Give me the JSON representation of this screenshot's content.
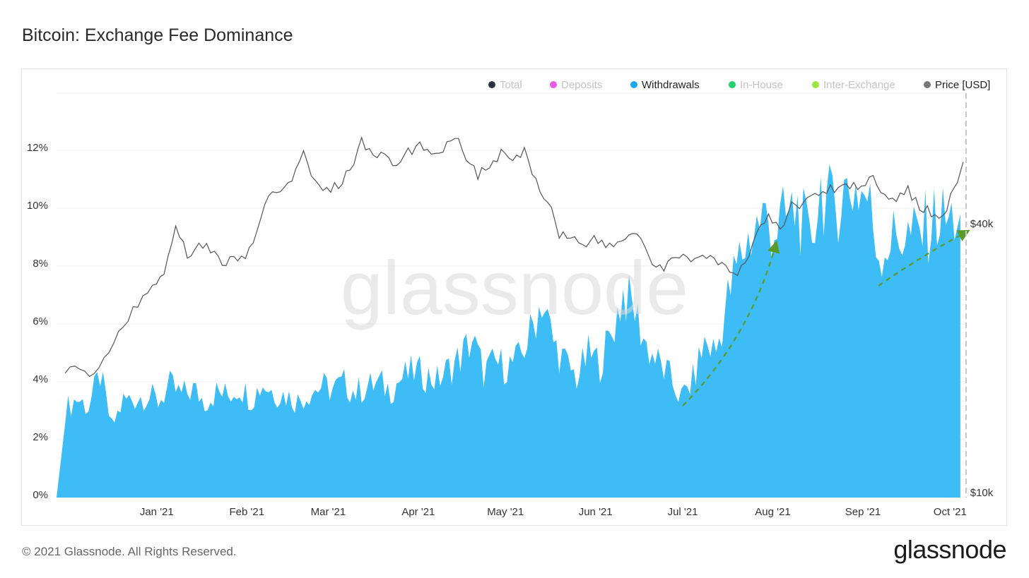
{
  "title": "Bitcoin: Exchange Fee Dominance",
  "footer": "© 2021 Glassnode. All Rights Reserved.",
  "logo": "glassnode",
  "watermark": "glassnode",
  "legend": [
    {
      "label": "Total",
      "color": "#2c3340",
      "active": false
    },
    {
      "label": "Deposits",
      "color": "#e85ae8",
      "active": false
    },
    {
      "label": "Withdrawals",
      "color": "#1aa7f7",
      "active": true
    },
    {
      "label": "In-House",
      "color": "#22d36b",
      "active": false
    },
    {
      "label": "Inter-Exchange",
      "color": "#9ae83a",
      "active": false
    },
    {
      "label": "Price [USD]",
      "color": "#777777",
      "active": true
    }
  ],
  "colors": {
    "area": "#3dbcf6",
    "price_line": "#555555",
    "annotation": "#5a9a2a"
  },
  "chart_data": {
    "type": "area",
    "x_ticks": [
      "Jan '21",
      "Feb '21",
      "Mar '21",
      "Apr '21",
      "May '21",
      "Jun '21",
      "Jul '21",
      "Aug '21",
      "Sep '21",
      "Oct '21"
    ],
    "y_left_ticks": [
      "0%",
      "2%",
      "4%",
      "6%",
      "8%",
      "10%",
      "12%"
    ],
    "y_left_range": [
      0,
      14
    ],
    "y_right_ticks": [
      "$10k",
      "$40k"
    ],
    "y_right_scale": "log",
    "grid": true,
    "legend_position": "top-right",
    "series": [
      {
        "name": "Withdrawals",
        "unit": "%",
        "points": [
          [
            "2020-12-01",
            3.0
          ],
          [
            "2020-12-05",
            3.4
          ],
          [
            "2020-12-09",
            3.1
          ],
          [
            "2020-12-13",
            4.2
          ],
          [
            "2020-12-17",
            2.4
          ],
          [
            "2020-12-21",
            3.3
          ],
          [
            "2020-12-25",
            3.4
          ],
          [
            "2020-12-29",
            3.5
          ],
          [
            "2021-01-02",
            3.3
          ],
          [
            "2021-01-06",
            3.8
          ],
          [
            "2021-01-10",
            3.5
          ],
          [
            "2021-01-14",
            3.7
          ],
          [
            "2021-01-18",
            3.3
          ],
          [
            "2021-01-22",
            3.6
          ],
          [
            "2021-01-26",
            3.5
          ],
          [
            "2021-01-30",
            3.8
          ],
          [
            "2021-02-03",
            3.4
          ],
          [
            "2021-02-07",
            3.9
          ],
          [
            "2021-02-11",
            3.6
          ],
          [
            "2021-02-15",
            3.5
          ],
          [
            "2021-02-19",
            3.3
          ],
          [
            "2021-02-23",
            3.6
          ],
          [
            "2021-02-27",
            3.8
          ],
          [
            "2021-03-03",
            3.7
          ],
          [
            "2021-03-07",
            3.9
          ],
          [
            "2021-03-11",
            3.6
          ],
          [
            "2021-03-15",
            3.8
          ],
          [
            "2021-03-19",
            3.9
          ],
          [
            "2021-03-23",
            3.7
          ],
          [
            "2021-03-27",
            4.1
          ],
          [
            "2021-03-31",
            4.3
          ],
          [
            "2021-04-04",
            4.2
          ],
          [
            "2021-04-08",
            4.0
          ],
          [
            "2021-04-12",
            4.4
          ],
          [
            "2021-04-16",
            4.8
          ],
          [
            "2021-04-20",
            5.4
          ],
          [
            "2021-04-24",
            4.3
          ],
          [
            "2021-04-28",
            4.6
          ],
          [
            "2021-05-02",
            4.5
          ],
          [
            "2021-05-06",
            4.7
          ],
          [
            "2021-05-10",
            5.6
          ],
          [
            "2021-05-14",
            6.8
          ],
          [
            "2021-05-18",
            5.3
          ],
          [
            "2021-05-22",
            4.6
          ],
          [
            "2021-05-26",
            4.1
          ],
          [
            "2021-05-30",
            4.9
          ],
          [
            "2021-06-03",
            4.6
          ],
          [
            "2021-06-07",
            5.6
          ],
          [
            "2021-06-11",
            7.0
          ],
          [
            "2021-06-15",
            6.4
          ],
          [
            "2021-06-19",
            5.2
          ],
          [
            "2021-06-23",
            4.6
          ],
          [
            "2021-06-27",
            4.1
          ],
          [
            "2021-07-01",
            3.4
          ],
          [
            "2021-07-05",
            4.0
          ],
          [
            "2021-07-09",
            5.3
          ],
          [
            "2021-07-13",
            5.0
          ],
          [
            "2021-07-17",
            6.8
          ],
          [
            "2021-07-21",
            8.2
          ],
          [
            "2021-07-25",
            9.0
          ],
          [
            "2021-07-29",
            9.6
          ],
          [
            "2021-08-02",
            9.2
          ],
          [
            "2021-08-06",
            9.5
          ],
          [
            "2021-08-10",
            9.9
          ],
          [
            "2021-08-14",
            8.6
          ],
          [
            "2021-08-18",
            10.6
          ],
          [
            "2021-08-22",
            9.8
          ],
          [
            "2021-08-26",
            10.5
          ],
          [
            "2021-08-30",
            10.6
          ],
          [
            "2021-09-03",
            10.3
          ],
          [
            "2021-09-07",
            8.4
          ],
          [
            "2021-09-11",
            8.8
          ],
          [
            "2021-09-15",
            9.0
          ],
          [
            "2021-09-19",
            8.9
          ],
          [
            "2021-09-23",
            9.2
          ],
          [
            "2021-09-27",
            9.6
          ],
          [
            "2021-10-01",
            9.4
          ],
          [
            "2021-10-05",
            9.8
          ]
        ]
      },
      {
        "name": "Price [USD]",
        "unit": "USD",
        "points": [
          [
            "2020-12-01",
            19000
          ],
          [
            "2020-12-06",
            18800
          ],
          [
            "2020-12-11",
            18100
          ],
          [
            "2020-12-16",
            21000
          ],
          [
            "2020-12-21",
            23500
          ],
          [
            "2020-12-26",
            26500
          ],
          [
            "2020-12-31",
            29000
          ],
          [
            "2021-01-04",
            31000
          ],
          [
            "2021-01-08",
            40000
          ],
          [
            "2021-01-12",
            33500
          ],
          [
            "2021-01-16",
            36500
          ],
          [
            "2021-01-20",
            35000
          ],
          [
            "2021-01-24",
            32500
          ],
          [
            "2021-01-28",
            33500
          ],
          [
            "2021-02-01",
            33500
          ],
          [
            "2021-02-05",
            38000
          ],
          [
            "2021-02-09",
            46000
          ],
          [
            "2021-02-13",
            47500
          ],
          [
            "2021-02-17",
            51000
          ],
          [
            "2021-02-21",
            57000
          ],
          [
            "2021-02-25",
            49000
          ],
          [
            "2021-03-01",
            48000
          ],
          [
            "2021-03-05",
            48500
          ],
          [
            "2021-03-09",
            53000
          ],
          [
            "2021-03-13",
            61000
          ],
          [
            "2021-03-17",
            56500
          ],
          [
            "2021-03-21",
            57500
          ],
          [
            "2021-03-25",
            53000
          ],
          [
            "2021-03-29",
            58000
          ],
          [
            "2021-04-02",
            59500
          ],
          [
            "2021-04-06",
            58000
          ],
          [
            "2021-04-10",
            59000
          ],
          [
            "2021-04-14",
            63500
          ],
          [
            "2021-04-18",
            56500
          ],
          [
            "2021-04-22",
            51500
          ],
          [
            "2021-04-26",
            53500
          ],
          [
            "2021-04-30",
            57500
          ],
          [
            "2021-05-04",
            55000
          ],
          [
            "2021-05-08",
            58000
          ],
          [
            "2021-05-12",
            50000
          ],
          [
            "2021-05-16",
            45000
          ],
          [
            "2021-05-20",
            38000
          ],
          [
            "2021-05-24",
            37500
          ],
          [
            "2021-05-28",
            36000
          ],
          [
            "2021-06-01",
            37000
          ],
          [
            "2021-06-05",
            35500
          ],
          [
            "2021-06-09",
            36000
          ],
          [
            "2021-06-13",
            38000
          ],
          [
            "2021-06-17",
            37500
          ],
          [
            "2021-06-21",
            32000
          ],
          [
            "2021-06-25",
            31500
          ],
          [
            "2021-06-29",
            34000
          ],
          [
            "2021-07-03",
            33500
          ],
          [
            "2021-07-07",
            34000
          ],
          [
            "2021-07-11",
            33500
          ],
          [
            "2021-07-15",
            32000
          ],
          [
            "2021-07-19",
            30500
          ],
          [
            "2021-07-23",
            32500
          ],
          [
            "2021-07-27",
            38500
          ],
          [
            "2021-07-31",
            41500
          ],
          [
            "2021-08-04",
            38500
          ],
          [
            "2021-08-08",
            44000
          ],
          [
            "2021-08-12",
            44500
          ],
          [
            "2021-08-16",
            46500
          ],
          [
            "2021-08-20",
            47500
          ],
          [
            "2021-08-24",
            48500
          ],
          [
            "2021-08-28",
            49000
          ],
          [
            "2021-09-01",
            48000
          ],
          [
            "2021-09-05",
            51500
          ],
          [
            "2021-09-09",
            46500
          ],
          [
            "2021-09-13",
            45000
          ],
          [
            "2021-09-17",
            47500
          ],
          [
            "2021-09-21",
            43500
          ],
          [
            "2021-09-25",
            42500
          ],
          [
            "2021-09-29",
            41500
          ],
          [
            "2021-10-03",
            48000
          ],
          [
            "2021-10-06",
            55000
          ]
        ]
      }
    ]
  }
}
